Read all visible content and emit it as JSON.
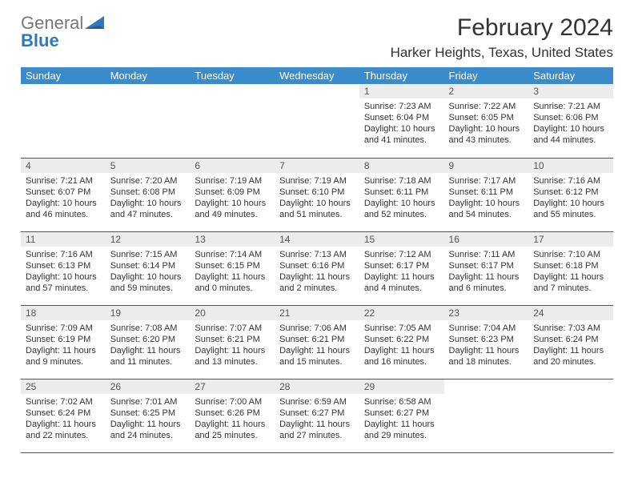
{
  "logo": {
    "word1": "General",
    "word2": "Blue",
    "word1_color": "#777777",
    "word2_color": "#2e78bd",
    "triangle_color": "#2e78bd"
  },
  "title": "February 2024",
  "subtitle": "Harker Heights, Texas, United States",
  "styling": {
    "header_bg": "#3b8aca",
    "header_fg": "#ffffff",
    "daynum_bg": "#ececec",
    "row_border": "#2e5d8a",
    "body_font_size": 11,
    "title_font_size": 30,
    "subtitle_font_size": 17
  },
  "columns": [
    "Sunday",
    "Monday",
    "Tuesday",
    "Wednesday",
    "Thursday",
    "Friday",
    "Saturday"
  ],
  "weeks": [
    [
      null,
      null,
      null,
      null,
      {
        "n": "1",
        "sr": "Sunrise: 7:23 AM",
        "ss": "Sunset: 6:04 PM",
        "dl": "Daylight: 10 hours and 41 minutes."
      },
      {
        "n": "2",
        "sr": "Sunrise: 7:22 AM",
        "ss": "Sunset: 6:05 PM",
        "dl": "Daylight: 10 hours and 43 minutes."
      },
      {
        "n": "3",
        "sr": "Sunrise: 7:21 AM",
        "ss": "Sunset: 6:06 PM",
        "dl": "Daylight: 10 hours and 44 minutes."
      }
    ],
    [
      {
        "n": "4",
        "sr": "Sunrise: 7:21 AM",
        "ss": "Sunset: 6:07 PM",
        "dl": "Daylight: 10 hours and 46 minutes."
      },
      {
        "n": "5",
        "sr": "Sunrise: 7:20 AM",
        "ss": "Sunset: 6:08 PM",
        "dl": "Daylight: 10 hours and 47 minutes."
      },
      {
        "n": "6",
        "sr": "Sunrise: 7:19 AM",
        "ss": "Sunset: 6:09 PM",
        "dl": "Daylight: 10 hours and 49 minutes."
      },
      {
        "n": "7",
        "sr": "Sunrise: 7:19 AM",
        "ss": "Sunset: 6:10 PM",
        "dl": "Daylight: 10 hours and 51 minutes."
      },
      {
        "n": "8",
        "sr": "Sunrise: 7:18 AM",
        "ss": "Sunset: 6:11 PM",
        "dl": "Daylight: 10 hours and 52 minutes."
      },
      {
        "n": "9",
        "sr": "Sunrise: 7:17 AM",
        "ss": "Sunset: 6:11 PM",
        "dl": "Daylight: 10 hours and 54 minutes."
      },
      {
        "n": "10",
        "sr": "Sunrise: 7:16 AM",
        "ss": "Sunset: 6:12 PM",
        "dl": "Daylight: 10 hours and 55 minutes."
      }
    ],
    [
      {
        "n": "11",
        "sr": "Sunrise: 7:16 AM",
        "ss": "Sunset: 6:13 PM",
        "dl": "Daylight: 10 hours and 57 minutes."
      },
      {
        "n": "12",
        "sr": "Sunrise: 7:15 AM",
        "ss": "Sunset: 6:14 PM",
        "dl": "Daylight: 10 hours and 59 minutes."
      },
      {
        "n": "13",
        "sr": "Sunrise: 7:14 AM",
        "ss": "Sunset: 6:15 PM",
        "dl": "Daylight: 11 hours and 0 minutes."
      },
      {
        "n": "14",
        "sr": "Sunrise: 7:13 AM",
        "ss": "Sunset: 6:16 PM",
        "dl": "Daylight: 11 hours and 2 minutes."
      },
      {
        "n": "15",
        "sr": "Sunrise: 7:12 AM",
        "ss": "Sunset: 6:17 PM",
        "dl": "Daylight: 11 hours and 4 minutes."
      },
      {
        "n": "16",
        "sr": "Sunrise: 7:11 AM",
        "ss": "Sunset: 6:17 PM",
        "dl": "Daylight: 11 hours and 6 minutes."
      },
      {
        "n": "17",
        "sr": "Sunrise: 7:10 AM",
        "ss": "Sunset: 6:18 PM",
        "dl": "Daylight: 11 hours and 7 minutes."
      }
    ],
    [
      {
        "n": "18",
        "sr": "Sunrise: 7:09 AM",
        "ss": "Sunset: 6:19 PM",
        "dl": "Daylight: 11 hours and 9 minutes."
      },
      {
        "n": "19",
        "sr": "Sunrise: 7:08 AM",
        "ss": "Sunset: 6:20 PM",
        "dl": "Daylight: 11 hours and 11 minutes."
      },
      {
        "n": "20",
        "sr": "Sunrise: 7:07 AM",
        "ss": "Sunset: 6:21 PM",
        "dl": "Daylight: 11 hours and 13 minutes."
      },
      {
        "n": "21",
        "sr": "Sunrise: 7:06 AM",
        "ss": "Sunset: 6:21 PM",
        "dl": "Daylight: 11 hours and 15 minutes."
      },
      {
        "n": "22",
        "sr": "Sunrise: 7:05 AM",
        "ss": "Sunset: 6:22 PM",
        "dl": "Daylight: 11 hours and 16 minutes."
      },
      {
        "n": "23",
        "sr": "Sunrise: 7:04 AM",
        "ss": "Sunset: 6:23 PM",
        "dl": "Daylight: 11 hours and 18 minutes."
      },
      {
        "n": "24",
        "sr": "Sunrise: 7:03 AM",
        "ss": "Sunset: 6:24 PM",
        "dl": "Daylight: 11 hours and 20 minutes."
      }
    ],
    [
      {
        "n": "25",
        "sr": "Sunrise: 7:02 AM",
        "ss": "Sunset: 6:24 PM",
        "dl": "Daylight: 11 hours and 22 minutes."
      },
      {
        "n": "26",
        "sr": "Sunrise: 7:01 AM",
        "ss": "Sunset: 6:25 PM",
        "dl": "Daylight: 11 hours and 24 minutes."
      },
      {
        "n": "27",
        "sr": "Sunrise: 7:00 AM",
        "ss": "Sunset: 6:26 PM",
        "dl": "Daylight: 11 hours and 25 minutes."
      },
      {
        "n": "28",
        "sr": "Sunrise: 6:59 AM",
        "ss": "Sunset: 6:27 PM",
        "dl": "Daylight: 11 hours and 27 minutes."
      },
      {
        "n": "29",
        "sr": "Sunrise: 6:58 AM",
        "ss": "Sunset: 6:27 PM",
        "dl": "Daylight: 11 hours and 29 minutes."
      },
      null,
      null
    ]
  ]
}
